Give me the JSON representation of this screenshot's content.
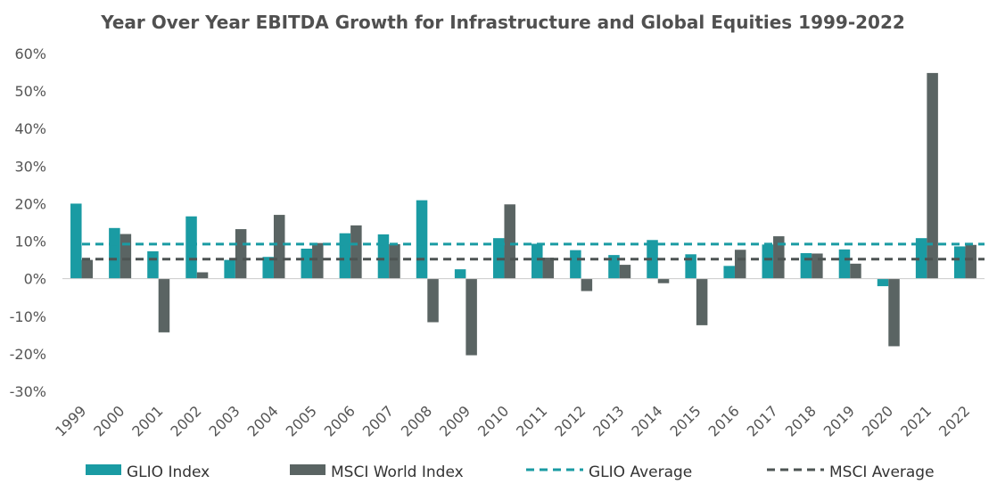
{
  "chart_data": {
    "type": "bar",
    "title": "Year Over Year EBITDA Growth for Infrastructure and Global Equities 1999-2022",
    "xlabel": "",
    "ylabel": "",
    "categories": [
      "1999",
      "2000",
      "2001",
      "2002",
      "2003",
      "2004",
      "2005",
      "2006",
      "2007",
      "2008",
      "2009",
      "2010",
      "2011",
      "2012",
      "2013",
      "2014",
      "2015",
      "2016",
      "2017",
      "2018",
      "2019",
      "2020",
      "2021",
      "2022"
    ],
    "y_ticks": [
      "60%",
      "50%",
      "40%",
      "30%",
      "20%",
      "10%",
      "0%",
      "-10%",
      "-20%",
      "-30%"
    ],
    "ylim": [
      -30,
      60
    ],
    "grid": false,
    "legend_position": "bottom",
    "series": [
      {
        "name": "GLIO Index",
        "color": "#1a9ba3",
        "values": [
          20.0,
          13.5,
          7.3,
          16.6,
          5.0,
          5.8,
          8.0,
          12.1,
          11.8,
          20.9,
          2.5,
          10.8,
          9.3,
          7.6,
          6.3,
          10.3,
          6.5,
          3.4,
          9.1,
          6.8,
          7.8,
          -2.0,
          10.8,
          8.6
        ]
      },
      {
        "name": "MSCI World Index",
        "color": "#5a6463",
        "values": [
          5.0,
          11.9,
          -14.3,
          1.7,
          13.2,
          17.0,
          9.5,
          14.2,
          9.2,
          -11.6,
          -20.4,
          19.8,
          5.6,
          -3.3,
          3.7,
          -1.2,
          -12.4,
          7.7,
          11.3,
          6.7,
          4.0,
          -18.0,
          54.8,
          9.0
        ]
      }
    ],
    "averages": [
      {
        "name": "GLIO Average",
        "color": "#1a9ba3",
        "value": 9.2
      },
      {
        "name": "MSCI Average",
        "color": "#4d5453",
        "value": 5.2
      }
    ]
  }
}
